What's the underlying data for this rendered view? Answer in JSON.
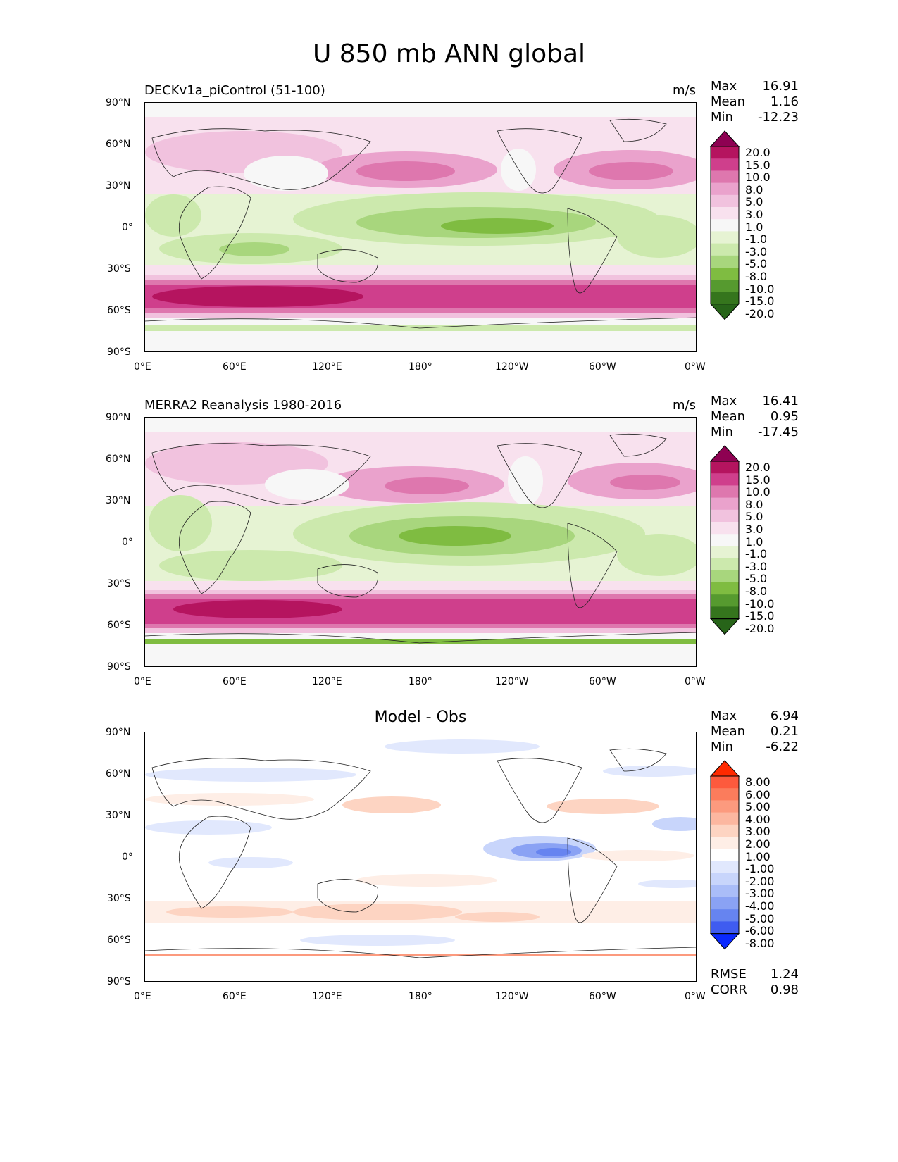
{
  "title": "U 850 mb ANN global",
  "x_ticks": [
    "0°E",
    "60°E",
    "120°E",
    "180°",
    "120°W",
    "60°W",
    "0°W"
  ],
  "y_ticks": [
    "90°N",
    "60°N",
    "30°N",
    "0°",
    "30°S",
    "60°S",
    "90°S"
  ],
  "panels": [
    {
      "label": "DECKv1a_piControl (51-100)",
      "units": "m/s",
      "stats": {
        "Max": "16.91",
        "Mean": "1.16",
        "Min": "-12.23"
      },
      "colorbar": {
        "levels": [
          "20.0",
          "15.0",
          "10.0",
          "8.0",
          "5.0",
          "3.0",
          "1.0",
          "-1.0",
          "-3.0",
          "-5.0",
          "-8.0",
          "-10.0",
          "-15.0",
          "-20.0"
        ],
        "colors": [
          "#8e0152",
          "#b5145f",
          "#cf3f8c",
          "#de77ae",
          "#eaa2cc",
          "#f1c2de",
          "#f8e1ee",
          "#f7f7f7",
          "#e6f3d3",
          "#cce9ad",
          "#a8d67d",
          "#7fbc41",
          "#569a2f",
          "#35751d",
          "#276419"
        ]
      }
    },
    {
      "label": "MERRA2 Reanalysis 1980-2016",
      "units": "m/s",
      "stats": {
        "Max": "16.41",
        "Mean": "0.95",
        "Min": "-17.45"
      },
      "colorbar": {
        "levels": [
          "20.0",
          "15.0",
          "10.0",
          "8.0",
          "5.0",
          "3.0",
          "1.0",
          "-1.0",
          "-3.0",
          "-5.0",
          "-8.0",
          "-10.0",
          "-15.0",
          "-20.0"
        ],
        "colors": [
          "#8e0152",
          "#b5145f",
          "#cf3f8c",
          "#de77ae",
          "#eaa2cc",
          "#f1c2de",
          "#f8e1ee",
          "#f7f7f7",
          "#e6f3d3",
          "#cce9ad",
          "#a8d67d",
          "#7fbc41",
          "#569a2f",
          "#35751d",
          "#276419"
        ]
      }
    },
    {
      "label": "Model - Obs",
      "units": "",
      "stats": {
        "Max": "6.94",
        "Mean": "0.21",
        "Min": "-6.22"
      },
      "metrics": {
        "RMSE": "1.24",
        "CORR": "0.98"
      },
      "colorbar": {
        "levels": [
          "8.00",
          "6.00",
          "5.00",
          "4.00",
          "3.00",
          "2.00",
          "1.00",
          "-1.00",
          "-2.00",
          "-3.00",
          "-4.00",
          "-5.00",
          "-6.00",
          "-8.00"
        ],
        "colors": [
          "#ff2a00",
          "#fd5a3d",
          "#fb7c5c",
          "#fc9a7e",
          "#fcb7a0",
          "#fdd4c2",
          "#feeee6",
          "#ffffff",
          "#e1e8fd",
          "#c8d5fb",
          "#aabdf8",
          "#8aa2f4",
          "#6684f0",
          "#3f5cf0",
          "#0a28ff"
        ]
      }
    }
  ]
}
